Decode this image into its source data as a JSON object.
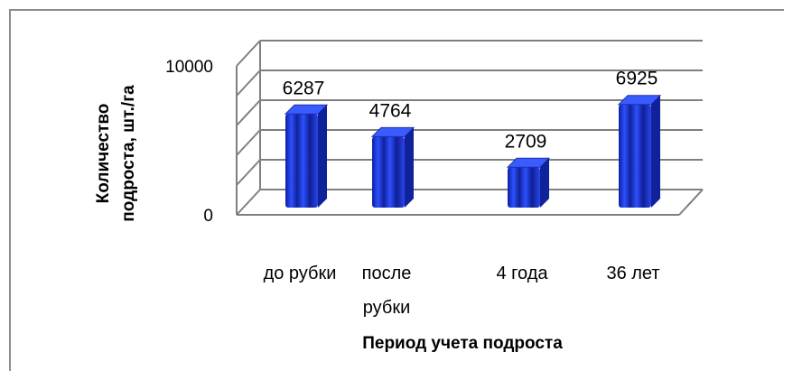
{
  "chart_data": {
    "type": "bar",
    "categories": [
      [
        "до рубки"
      ],
      [
        "после",
        "рубки"
      ],
      [
        "4 года"
      ],
      [
        "36 лет"
      ]
    ],
    "values": [
      6287,
      4764,
      2709,
      6925
    ],
    "xlabel": "Период учета подроста",
    "ylabel": [
      "Количество",
      "подроста, шт./га"
    ],
    "ylim": [
      0,
      10000
    ],
    "ytick_labels": [
      "0",
      "10000"
    ],
    "grid": true,
    "bar_color": "#1f3fd6",
    "style": "3d-cylinder"
  }
}
